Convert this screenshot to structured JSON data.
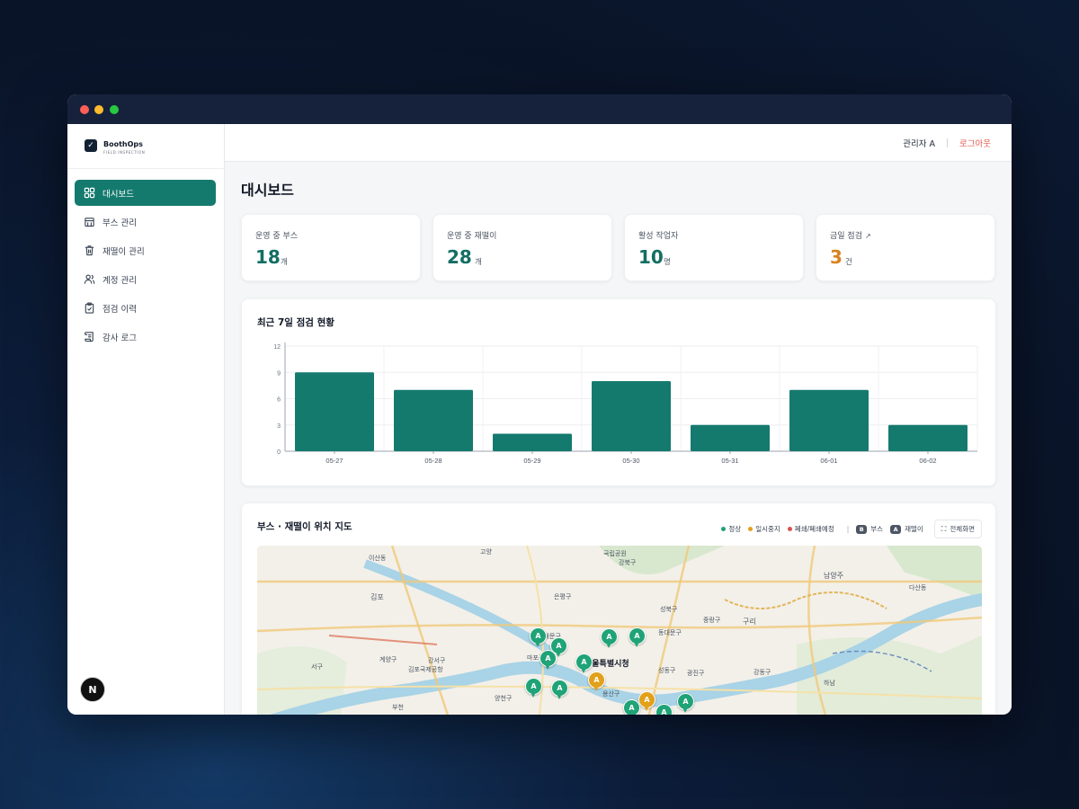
{
  "brand": {
    "name": "BoothOps",
    "subtitle": "FIELD INSPECTION"
  },
  "sidebar": {
    "items": [
      {
        "label": "대시보드",
        "icon": "grid-icon",
        "active": true
      },
      {
        "label": "부스 관리",
        "icon": "building-icon"
      },
      {
        "label": "재떨이 관리",
        "icon": "trash-icon"
      },
      {
        "label": "계정 관리",
        "icon": "users-icon"
      },
      {
        "label": "점검 이력",
        "icon": "clipboard-check-icon"
      },
      {
        "label": "감사 로그",
        "icon": "scroll-icon"
      }
    ],
    "avatar_letter": "N"
  },
  "topbar": {
    "user": "관리자 A",
    "logout": "로그아웃"
  },
  "page": {
    "title": "대시보드"
  },
  "stats": [
    {
      "label": "운영 중 부스",
      "value": "18",
      "unit": "개"
    },
    {
      "label": "운영 중 재떨이",
      "value": "28",
      "unit": "개"
    },
    {
      "label": "활성 작업자",
      "value": "10",
      "unit": "명"
    },
    {
      "label": "금일 점검",
      "value": "3",
      "unit": "건",
      "link_icon": "↗"
    }
  ],
  "chart_card": {
    "title": "최근 7일 점검 현황"
  },
  "chart_data": {
    "type": "bar",
    "categories": [
      "05-27",
      "05-28",
      "05-29",
      "05-30",
      "05-31",
      "06-01",
      "06-02"
    ],
    "values": [
      9,
      7,
      2,
      8,
      3,
      7,
      3
    ],
    "yticks": [
      0,
      3,
      6,
      9,
      12
    ],
    "ylim": [
      0,
      12
    ],
    "grid": true,
    "bar_color": "#157a6e",
    "title": "최근 7일 점검 현황"
  },
  "map_card": {
    "title": "부스 · 재떨이 위치 지도",
    "legend": {
      "normal": "정상",
      "paused": "일시중지",
      "closed": "폐쇄/폐쇄예정",
      "booth_badge": "B",
      "booth": "부스",
      "ashtray_badge": "A",
      "ashtray": "재떨이"
    },
    "fullscreen": "전체화면",
    "map_labels": {
      "goyang": "고양",
      "ilsan": "이산동",
      "gimpo": "김포",
      "namyangju": "남양주",
      "guri": "구리",
      "seoul": "서울특별시청",
      "hanam": "하남",
      "gangseo": "강서구",
      "yangcheon": "양천구",
      "gangbuk": "강북구",
      "seongbuk": "성북구",
      "jungnang": "중랑구",
      "gwangjin": "광진구",
      "gangdong": "강동구",
      "dongdaemun": "동대문구",
      "seodaemun": "서대문구",
      "mapo": "마포구",
      "eunpyeong": "은평구",
      "seongdong": "성동구",
      "yongsan": "용산구",
      "gyeyang": "계양구",
      "seogu": "서구",
      "dasan": "다산동",
      "bucheon": "부천",
      "gimpo_airport": "김포국제공항",
      "gukgongwon": "국립공원"
    },
    "colors": {
      "normal": "#1fa377",
      "paused": "#e2a11a",
      "closed": "#d9534f"
    },
    "marker_letter": "A"
  }
}
